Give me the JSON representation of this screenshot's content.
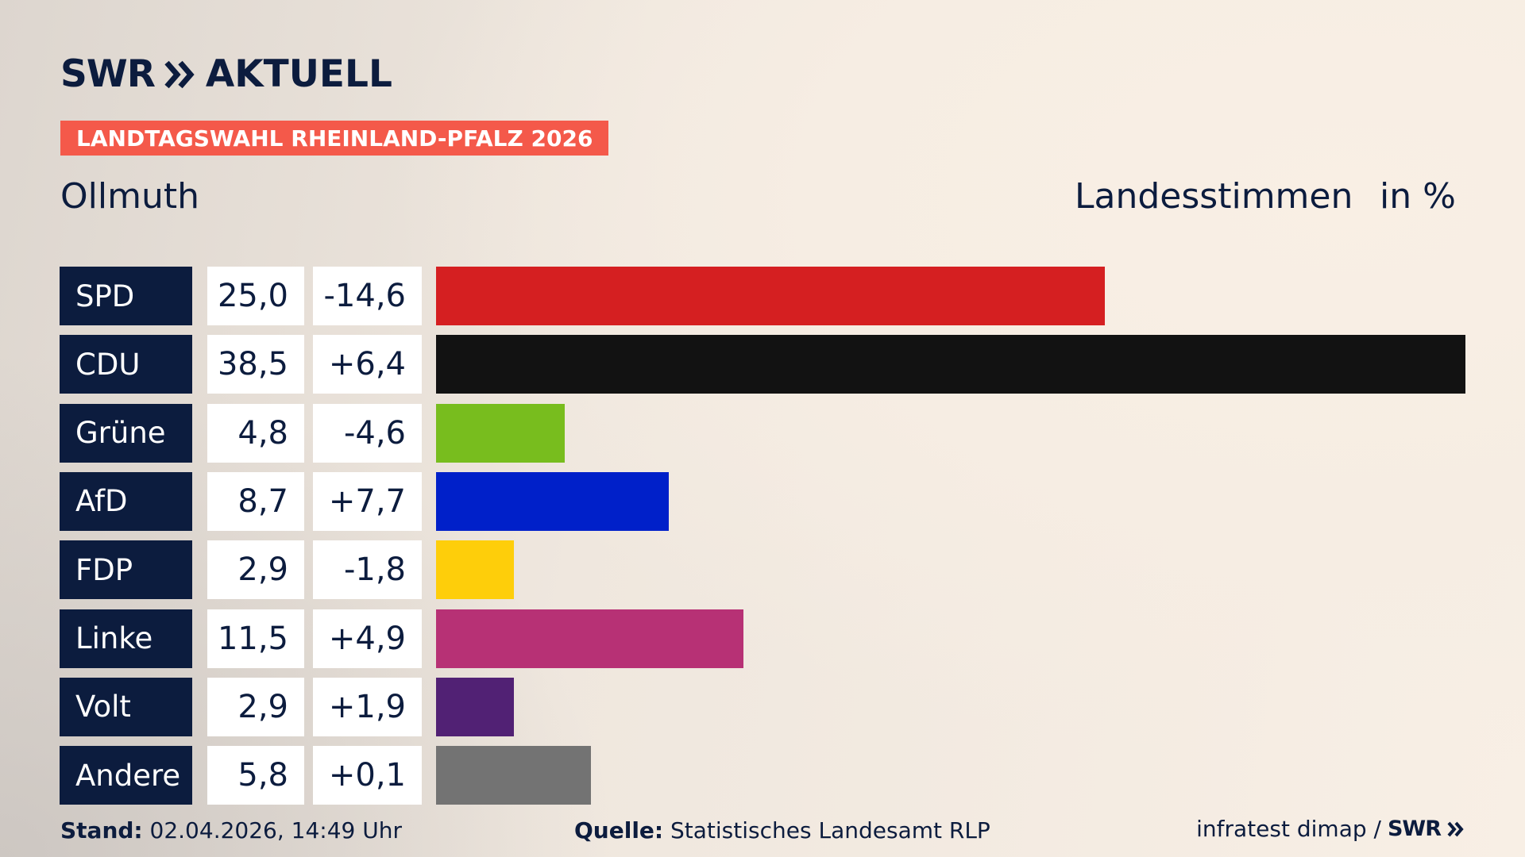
{
  "brand": {
    "swr": "SWR",
    "aktuell": "AKTUELL",
    "navy": "#0c1c3e"
  },
  "badge": {
    "text": "LANDTAGSWAHL RHEINLAND-PFALZ 2026",
    "color": "#f4594a"
  },
  "header": {
    "place": "Ollmuth",
    "measure": "Landesstimmen",
    "unit": "in %"
  },
  "chart_data": {
    "type": "bar",
    "orientation": "horizontal",
    "categories": [
      "SPD",
      "CDU",
      "Grüne",
      "AfD",
      "FDP",
      "Linke",
      "Volt",
      "Andere"
    ],
    "values": [
      25.0,
      38.5,
      4.8,
      8.7,
      2.9,
      11.5,
      2.9,
      5.8
    ],
    "value_labels": [
      "25,0",
      "38,5",
      "4,8",
      "8,7",
      "2,9",
      "11,5",
      "2,9",
      "5,8"
    ],
    "differences": [
      -14.6,
      6.4,
      -4.6,
      7.7,
      -1.8,
      4.9,
      1.9,
      0.1
    ],
    "difference_labels": [
      "-14,6",
      "+6,4",
      "-4,6",
      "+7,7",
      "-1,8",
      "+4,9",
      "+1,9",
      "+0,1"
    ],
    "colors": [
      "#d51f21",
      "#121212",
      "#78bd1e",
      "#0020c9",
      "#fece0a",
      "#b73175",
      "#512174",
      "#737373"
    ],
    "xlim": [
      0,
      38.5
    ],
    "grid": false,
    "legend": "none"
  },
  "footer": {
    "stand_label": "Stand:",
    "stand_value": "02.04.2026, 14:49 Uhr",
    "quelle_label": "Quelle:",
    "quelle_value": "Statistisches Landesamt RLP",
    "credit": "infratest dimap /",
    "credit_brand": "SWR"
  }
}
